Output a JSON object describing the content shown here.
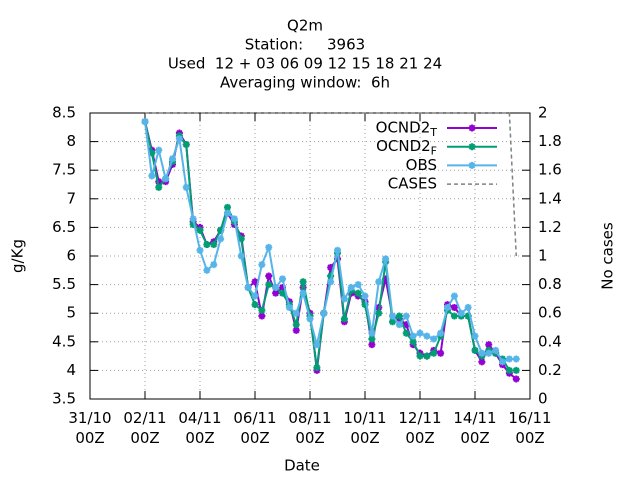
{
  "chart_data": {
    "type": "line",
    "title": [
      "Q2m",
      "Station:     3963",
      "Used  12 + 03 06 09 12 15 18 21 24",
      "Averaging window:  6h"
    ],
    "xlabel": "Date",
    "ylabel": "g/Kg",
    "y2label": "No cases",
    "x": [
      "02/11 00Z",
      "02/11 06Z",
      "02/11 12Z",
      "02/11 18Z",
      "03/11 00Z",
      "03/11 06Z",
      "03/11 12Z",
      "03/11 18Z",
      "04/11 00Z",
      "04/11 06Z",
      "04/11 12Z",
      "04/11 18Z",
      "05/11 00Z",
      "05/11 06Z",
      "05/11 12Z",
      "05/11 18Z",
      "06/11 00Z",
      "06/11 06Z",
      "06/11 12Z",
      "06/11 18Z",
      "07/11 00Z",
      "07/11 06Z",
      "07/11 12Z",
      "07/11 18Z",
      "08/11 00Z",
      "08/11 06Z",
      "08/11 12Z",
      "08/11 18Z",
      "09/11 00Z",
      "09/11 06Z",
      "09/11 12Z",
      "09/11 18Z",
      "10/11 00Z",
      "10/11 06Z",
      "10/11 12Z",
      "10/11 18Z",
      "11/11 00Z",
      "11/11 06Z",
      "11/11 12Z",
      "11/11 18Z",
      "12/11 00Z",
      "12/11 06Z",
      "12/11 12Z",
      "12/11 18Z",
      "13/11 00Z",
      "13/11 06Z",
      "13/11 12Z",
      "13/11 18Z",
      "14/11 00Z",
      "14/11 06Z",
      "14/11 12Z",
      "14/11 18Z",
      "15/11 00Z",
      "15/11 06Z",
      "15/11 12Z"
    ],
    "xlim": [
      "31/10 00Z",
      "16/11 00Z"
    ],
    "xticks": [
      "31/10 00Z",
      "02/11 00Z",
      "04/11 00Z",
      "06/11 00Z",
      "08/11 00Z",
      "10/11 00Z",
      "12/11 00Z",
      "14/11 00Z",
      "16/11 00Z"
    ],
    "ylim": [
      3.5,
      8.5
    ],
    "yticks": [
      3.5,
      4,
      4.5,
      5,
      5.5,
      6,
      6.5,
      7,
      7.5,
      8,
      8.5
    ],
    "y2lim": [
      0,
      2
    ],
    "y2ticks": [
      0,
      0.2,
      0.4,
      0.6,
      0.8,
      1,
      1.2,
      1.4,
      1.6,
      1.8,
      2
    ],
    "grid": true,
    "legend": "top-right",
    "series": [
      {
        "name": "OCND2_T",
        "color": "#9400d3",
        "marker": true,
        "values": [
          8.35,
          7.85,
          7.3,
          7.3,
          7.6,
          8.15,
          7.95,
          6.6,
          6.5,
          6.2,
          6.25,
          6.45,
          6.75,
          6.55,
          6.35,
          5.45,
          5.55,
          4.95,
          5.65,
          5.35,
          5.45,
          5.2,
          4.7,
          5.45,
          5.0,
          4.0,
          5.0,
          5.8,
          5.95,
          4.85,
          5.35,
          5.3,
          5.2,
          4.45,
          5.1,
          5.6,
          4.95,
          4.9,
          4.8,
          4.45,
          4.3,
          4.25,
          4.35,
          4.3,
          5.15,
          5.1,
          4.95,
          4.95,
          4.35,
          4.15,
          4.45,
          4.3,
          4.1,
          3.95,
          3.85
        ]
      },
      {
        "name": "OCND2_F",
        "color": "#009e73",
        "marker": true,
        "values": [
          8.35,
          7.8,
          7.2,
          7.35,
          7.65,
          8.1,
          7.95,
          6.55,
          6.45,
          6.2,
          6.2,
          6.45,
          6.85,
          6.6,
          6.3,
          5.45,
          5.15,
          5.05,
          5.5,
          5.45,
          5.35,
          5.15,
          4.8,
          5.55,
          4.95,
          4.05,
          5.0,
          5.65,
          6.05,
          4.9,
          5.4,
          5.35,
          5.15,
          4.55,
          5.0,
          5.9,
          4.85,
          4.95,
          4.65,
          4.5,
          4.25,
          4.25,
          4.3,
          4.6,
          5.05,
          4.95,
          4.95,
          4.95,
          4.35,
          4.25,
          4.35,
          4.3,
          4.2,
          4.0,
          4.0
        ]
      },
      {
        "name": "OBS",
        "color": "#56b4e9",
        "marker": true,
        "values": [
          8.35,
          7.4,
          7.85,
          7.35,
          7.7,
          8.05,
          7.2,
          6.65,
          6.1,
          5.75,
          5.85,
          6.3,
          6.75,
          6.65,
          6.0,
          5.45,
          5.3,
          5.85,
          6.15,
          5.45,
          5.6,
          5.1,
          5.0,
          5.35,
          4.9,
          4.45,
          5.0,
          5.55,
          6.1,
          5.25,
          5.45,
          5.5,
          5.3,
          4.65,
          5.55,
          5.95,
          4.95,
          4.8,
          4.95,
          4.6,
          4.65,
          4.6,
          4.55,
          4.65,
          5.1,
          5.3,
          5.0,
          5.1,
          4.6,
          4.3,
          4.3,
          4.35,
          4.15,
          4.2,
          4.2
        ]
      },
      {
        "name": "CASES",
        "color": "#808080",
        "axis": "y2",
        "dashed": true,
        "marker": false,
        "values": [
          2,
          2,
          2,
          2,
          2,
          2,
          2,
          2,
          2,
          2,
          2,
          2,
          2,
          2,
          2,
          2,
          2,
          2,
          2,
          2,
          2,
          2,
          2,
          2,
          2,
          2,
          2,
          2,
          2,
          2,
          2,
          2,
          2,
          2,
          2,
          2,
          2,
          2,
          2,
          2,
          2,
          2,
          2,
          2,
          2,
          2,
          2,
          2,
          2,
          2,
          2,
          2,
          2,
          2,
          1
        ]
      }
    ]
  }
}
